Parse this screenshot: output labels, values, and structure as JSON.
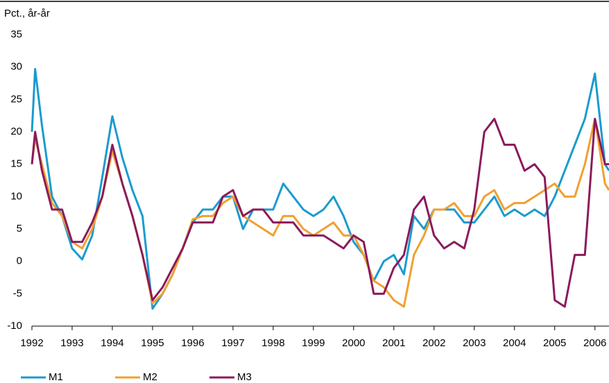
{
  "chart_data": {
    "type": "line",
    "y_label": "Pct., år-år",
    "x": [
      1992,
      1992.08,
      1992.25,
      1992.5,
      1992.75,
      1993,
      1993.25,
      1993.5,
      1993.75,
      1994,
      1994.25,
      1994.5,
      1994.75,
      1995,
      1995.25,
      1995.5,
      1995.75,
      1996,
      1996.25,
      1996.5,
      1996.75,
      1997,
      1997.25,
      1997.5,
      1997.75,
      1998,
      1998.25,
      1998.5,
      1998.75,
      1999,
      1999.25,
      1999.5,
      1999.75,
      2000,
      2000.25,
      2000.5,
      2000.75,
      2001,
      2001.25,
      2001.5,
      2001.75,
      2002,
      2002.25,
      2002.5,
      2002.75,
      2003,
      2003.25,
      2003.5,
      2003.75,
      2004,
      2004.25,
      2004.5,
      2004.75,
      2005,
      2005.25,
      2005.5,
      2005.75,
      2006,
      2006.25,
      2006.35
    ],
    "series": [
      {
        "name": "M1",
        "color": "#1a9bcf",
        "values": [
          20,
          29.7,
          21,
          10,
          7,
          2,
          0.3,
          4,
          13,
          22.4,
          16,
          11,
          7,
          -7.3,
          -5,
          -2,
          2,
          6,
          8,
          8,
          10,
          10,
          5,
          8,
          8,
          8,
          12,
          10,
          8,
          7,
          8,
          10,
          7,
          3,
          1,
          -3,
          0,
          1,
          -2,
          7,
          5,
          8,
          8,
          8,
          6,
          6,
          8,
          10,
          7,
          8,
          7,
          8,
          7,
          10,
          14,
          18,
          22,
          29,
          15,
          14
        ]
      },
      {
        "name": "M2",
        "color": "#f0a030",
        "values": [
          15,
          19,
          15,
          9,
          7,
          3,
          2,
          5,
          10,
          17,
          12,
          7,
          1,
          -6.5,
          -5,
          -2,
          2,
          6.5,
          7,
          7,
          9,
          10,
          7,
          6,
          5,
          4,
          7,
          7,
          5,
          4,
          5,
          6,
          4,
          4,
          1,
          -3,
          -4,
          -6,
          -7,
          1,
          4,
          8,
          8,
          9,
          7,
          7,
          10,
          11,
          8,
          9,
          9,
          10,
          11,
          12,
          10,
          10,
          15,
          22,
          12,
          11
        ]
      },
      {
        "name": "M3",
        "color": "#8b1a5c",
        "values": [
          15,
          20,
          14,
          8,
          8,
          3,
          3,
          6,
          10,
          18,
          12,
          7,
          1,
          -6,
          -4,
          -1,
          2,
          6,
          6,
          6,
          10,
          11,
          7,
          8,
          8,
          6,
          6,
          6,
          4,
          4,
          4,
          3,
          2,
          4,
          3,
          -5,
          -5,
          -1,
          1,
          8,
          10,
          4,
          2,
          3,
          2,
          8,
          20,
          22,
          18,
          18,
          14,
          15,
          13,
          -6,
          -7,
          1,
          1,
          22,
          15,
          15
        ]
      }
    ],
    "xlim": [
      1992,
      2006.35
    ],
    "xticks": [
      1992,
      1993,
      1994,
      1995,
      1996,
      1997,
      1998,
      1999,
      2000,
      2001,
      2002,
      2003,
      2004,
      2005,
      2006
    ],
    "ylim": [
      -10,
      35
    ],
    "yticks": [
      35,
      30,
      25,
      20,
      15,
      10,
      5,
      0,
      -5,
      -10
    ],
    "grid": false,
    "legend": "bottom-left"
  }
}
